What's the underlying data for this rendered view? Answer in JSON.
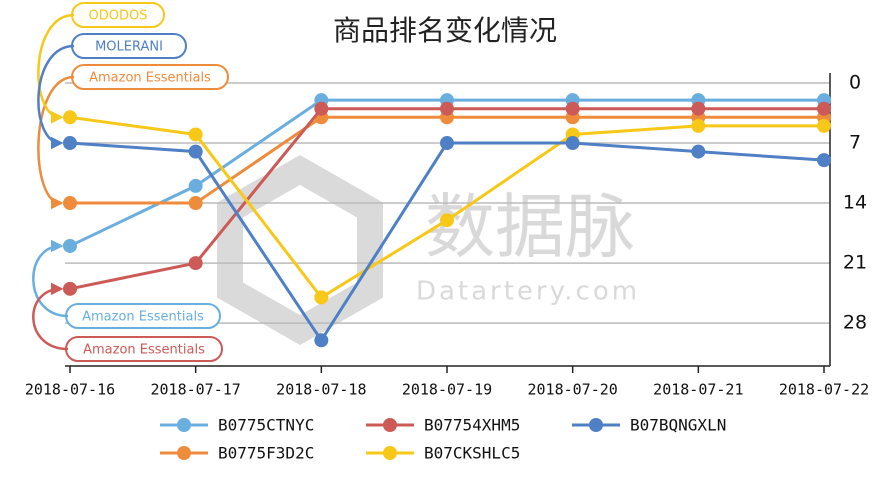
{
  "chart_data": {
    "type": "line",
    "title": "商品排名变化情况",
    "watermark": [
      "数据脉",
      "Datartery.com"
    ],
    "categories": [
      "2018-07-16",
      "2018-07-17",
      "2018-07-18",
      "2018-07-19",
      "2018-07-20",
      "2018-07-21",
      "2018-07-22"
    ],
    "ylim": [
      0,
      33
    ],
    "y_inverted": true,
    "y_axis_side": "right",
    "yticks": [
      0,
      7,
      14,
      21,
      28
    ],
    "grid": true,
    "legend": "bottom",
    "series": [
      {
        "name": "B0775CTNYC",
        "color": "#6aaee0",
        "values": [
          19,
          12,
          2,
          2,
          2,
          2,
          2
        ],
        "annotation": "Amazon Essentials"
      },
      {
        "name": "B0775F3D2C",
        "color": "#ef8c3c",
        "values": [
          14,
          14,
          4,
          4,
          4,
          4,
          4
        ],
        "annotation": "Amazon Essentials"
      },
      {
        "name": "B07754XHM5",
        "color": "#cc5a57",
        "values": [
          24,
          21,
          3,
          3,
          3,
          3,
          3
        ],
        "annotation": "Amazon Essentials"
      },
      {
        "name": "B07CKSHLC5",
        "color": "#f7c817",
        "values": [
          4,
          6,
          25,
          16,
          6,
          5,
          5
        ],
        "annotation": "ODODOS"
      },
      {
        "name": "B07BQNGXLN",
        "color": "#4f80c6",
        "values": [
          7,
          8,
          30,
          7,
          7,
          8,
          9
        ],
        "annotation": "MOLERANI"
      }
    ]
  }
}
